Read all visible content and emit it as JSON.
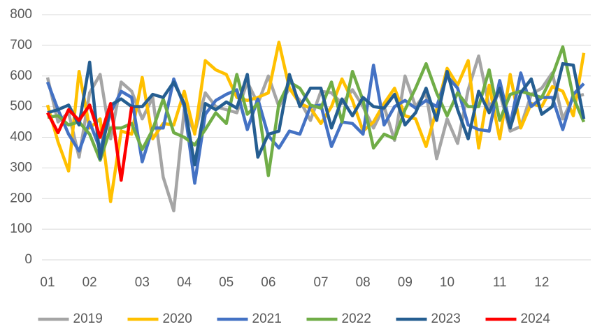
{
  "chart_data": {
    "type": "line",
    "categories": [
      "01",
      null,
      null,
      null,
      "02",
      null,
      null,
      null,
      null,
      "03",
      null,
      null,
      null,
      "04",
      null,
      null,
      null,
      "05",
      null,
      null,
      null,
      "06",
      null,
      null,
      null,
      null,
      "07",
      null,
      null,
      null,
      "08",
      null,
      null,
      null,
      "09",
      null,
      null,
      null,
      "10",
      null,
      null,
      null,
      null,
      "11",
      null,
      null,
      null,
      "12",
      null,
      null,
      null,
      null
    ],
    "series": [
      {
        "name": "2019",
        "color": "#a5a5a5",
        "values": [
          595,
          450,
          480,
          335,
          545,
          605,
          395,
          580,
          550,
          460,
          530,
          270,
          160,
          490,
          415,
          545,
          500,
          490,
          480,
          580,
          510,
          600,
          500,
          560,
          520,
          455,
          550,
          545,
          510,
          555,
          500,
          430,
          500,
          390,
          600,
          500,
          545,
          330,
          460,
          380,
          555,
          665,
          500,
          545,
          420,
          435,
          540,
          560,
          610,
          460,
          530,
          540
        ]
      },
      {
        "name": "2020",
        "color": "#ffc000",
        "values": [
          505,
          385,
          290,
          615,
          430,
          460,
          190,
          420,
          410,
          595,
          395,
          445,
          440,
          550,
          410,
          650,
          620,
          605,
          530,
          520,
          530,
          545,
          710,
          560,
          510,
          495,
          445,
          500,
          590,
          520,
          420,
          450,
          510,
          560,
          470,
          460,
          370,
          490,
          625,
          570,
          650,
          365,
          570,
          395,
          605,
          430,
          510,
          500,
          565,
          550,
          470,
          675
        ]
      },
      {
        "name": "2021",
        "color": "#4472c4",
        "values": [
          580,
          490,
          410,
          355,
          450,
          360,
          480,
          550,
          530,
          320,
          430,
          430,
          590,
          500,
          250,
          475,
          520,
          540,
          555,
          425,
          525,
          405,
          365,
          420,
          410,
          500,
          505,
          370,
          450,
          445,
          410,
          635,
          440,
          500,
          520,
          495,
          520,
          500,
          600,
          560,
          440,
          425,
          420,
          585,
          440,
          610,
          500,
          530,
          530,
          425,
          540,
          575
        ]
      },
      {
        "name": "2022",
        "color": "#70ad47",
        "values": [
          465,
          470,
          440,
          450,
          410,
          325,
          430,
          430,
          445,
          360,
          425,
          525,
          415,
          400,
          375,
          425,
          480,
          445,
          605,
          475,
          510,
          275,
          510,
          580,
          560,
          505,
          495,
          580,
          450,
          615,
          520,
          365,
          410,
          395,
          490,
          560,
          640,
          545,
          470,
          545,
          500,
          500,
          620,
          455,
          540,
          550,
          540,
          530,
          600,
          695,
          530,
          450
        ]
      },
      {
        "name": "2023",
        "color": "#255e91",
        "values": [
          480,
          490,
          505,
          440,
          645,
          330,
          505,
          525,
          500,
          500,
          540,
          530,
          580,
          510,
          310,
          510,
          490,
          515,
          495,
          605,
          335,
          410,
          420,
          605,
          500,
          560,
          560,
          430,
          525,
          470,
          530,
          500,
          495,
          540,
          440,
          480,
          560,
          455,
          615,
          490,
          395,
          550,
          480,
          560,
          430,
          545,
          590,
          475,
          500,
          640,
          635,
          460
        ]
      },
      {
        "name": "2024",
        "color": "#ff0000",
        "values": [
          480,
          415,
          490,
          455,
          505,
          400,
          510,
          260,
          500,
          null,
          null,
          null,
          null,
          null,
          null,
          null,
          null,
          null,
          null,
          null,
          null,
          null,
          null,
          null,
          null,
          null,
          null,
          null,
          null,
          null,
          null,
          null,
          null,
          null,
          null,
          null,
          null,
          null,
          null,
          null,
          null,
          null,
          null,
          null,
          null,
          null,
          null,
          null,
          null,
          null,
          null,
          null
        ]
      }
    ],
    "ylim": [
      0,
      800
    ],
    "yticks": [
      0,
      100,
      200,
      300,
      400,
      500,
      600,
      700,
      800
    ],
    "grid": true,
    "legend": "bottom"
  }
}
